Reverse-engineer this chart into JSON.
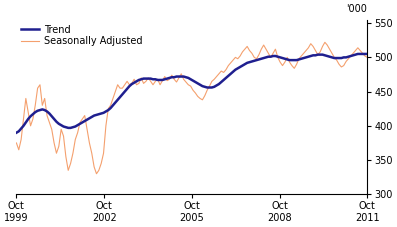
{
  "ylabel_right": "'000",
  "ylim": [
    300,
    555
  ],
  "yticks": [
    300,
    350,
    400,
    450,
    500,
    550
  ],
  "xtick_labels": [
    "Oct\n1999",
    "Oct\n2002",
    "Oct\n2005",
    "Oct\n2008",
    "Oct\n2011"
  ],
  "trend_color": "#1f1f8f",
  "seasonal_color": "#f4a06e",
  "trend_linewidth": 1.8,
  "seasonal_linewidth": 0.8,
  "legend_fontsize": 7.0,
  "tick_fontsize": 7.0,
  "background_color": "#ffffff",
  "trend_data": [
    390,
    392,
    396,
    400,
    405,
    410,
    414,
    417,
    420,
    422,
    423,
    424,
    423,
    421,
    418,
    414,
    410,
    406,
    403,
    401,
    399,
    398,
    397,
    397,
    398,
    399,
    401,
    403,
    405,
    407,
    409,
    411,
    413,
    415,
    416,
    417,
    418,
    419,
    421,
    423,
    426,
    430,
    434,
    438,
    442,
    446,
    450,
    454,
    458,
    461,
    463,
    465,
    467,
    468,
    469,
    469,
    469,
    469,
    468,
    468,
    467,
    467,
    467,
    468,
    469,
    470,
    471,
    471,
    472,
    472,
    472,
    472,
    471,
    470,
    468,
    466,
    464,
    462,
    460,
    458,
    457,
    456,
    456,
    456,
    457,
    459,
    461,
    464,
    467,
    470,
    473,
    476,
    479,
    482,
    484,
    486,
    488,
    490,
    492,
    493,
    494,
    495,
    496,
    497,
    498,
    499,
    500,
    501,
    501,
    502,
    502,
    501,
    500,
    499,
    498,
    497,
    496,
    496,
    496,
    496,
    497,
    498,
    499,
    500,
    501,
    502,
    503,
    503,
    504,
    504,
    504,
    503,
    502,
    501,
    500,
    499,
    499,
    499,
    499,
    500,
    500,
    501,
    502,
    503,
    504,
    505,
    505,
    505,
    505,
    505
  ],
  "seasonal_data": [
    375,
    365,
    380,
    410,
    440,
    420,
    400,
    410,
    430,
    455,
    460,
    430,
    440,
    415,
    405,
    395,
    375,
    360,
    370,
    395,
    385,
    355,
    335,
    345,
    360,
    380,
    390,
    405,
    410,
    415,
    395,
    375,
    360,
    340,
    330,
    335,
    345,
    360,
    400,
    425,
    430,
    440,
    450,
    460,
    455,
    455,
    460,
    465,
    460,
    462,
    468,
    460,
    462,
    470,
    462,
    465,
    470,
    465,
    460,
    465,
    468,
    460,
    466,
    472,
    466,
    468,
    474,
    468,
    464,
    470,
    476,
    468,
    464,
    460,
    458,
    452,
    448,
    443,
    440,
    438,
    444,
    452,
    458,
    465,
    468,
    472,
    476,
    480,
    478,
    482,
    488,
    492,
    496,
    500,
    498,
    502,
    508,
    512,
    516,
    510,
    506,
    500,
    498,
    504,
    512,
    518,
    512,
    506,
    500,
    506,
    512,
    500,
    493,
    488,
    493,
    500,
    493,
    488,
    484,
    490,
    498,
    502,
    506,
    510,
    514,
    520,
    516,
    510,
    504,
    508,
    516,
    522,
    518,
    512,
    506,
    500,
    496,
    490,
    486,
    488,
    494,
    498,
    502,
    506,
    510,
    514,
    510,
    506,
    502,
    500
  ]
}
